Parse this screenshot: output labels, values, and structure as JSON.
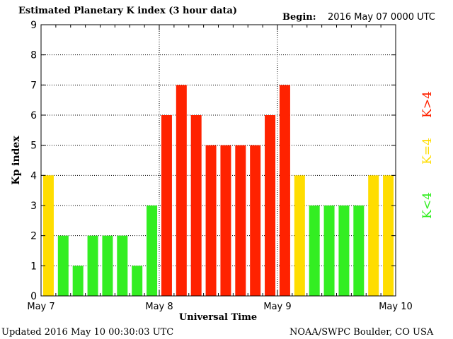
{
  "chart_data": {
    "type": "bar",
    "title": "Estimated Planetary K index (3 hour data)",
    "begin_label": "Begin:",
    "begin_value": "2016 May 07 0000 UTC",
    "xlabel": "Universal Time",
    "ylabel": "Kp index",
    "ylim": [
      0,
      9
    ],
    "yticks": [
      "0",
      "1",
      "2",
      "3",
      "4",
      "5",
      "6",
      "7",
      "8",
      "9"
    ],
    "day_labels": [
      "May 7",
      "May 8",
      "May 9",
      "May 10"
    ],
    "grid": true,
    "values": [
      4,
      2,
      1,
      2,
      2,
      2,
      1,
      3,
      6,
      7,
      6,
      5,
      5,
      5,
      5,
      6,
      7,
      4,
      3,
      3,
      3,
      3,
      4,
      4
    ],
    "legend": [
      {
        "label": "K<4",
        "color": "#33ee22"
      },
      {
        "label": "K=4",
        "color": "#ffdd00"
      },
      {
        "label": "K>4",
        "color": "#ff2200"
      }
    ],
    "colors": {
      "low": "#33ee22",
      "equal": "#ffdd00",
      "high": "#ff2200"
    }
  },
  "footer": {
    "updated": "Updated 2016 May 10 00:30:03 UTC",
    "source": "NOAA/SWPC Boulder, CO USA"
  }
}
